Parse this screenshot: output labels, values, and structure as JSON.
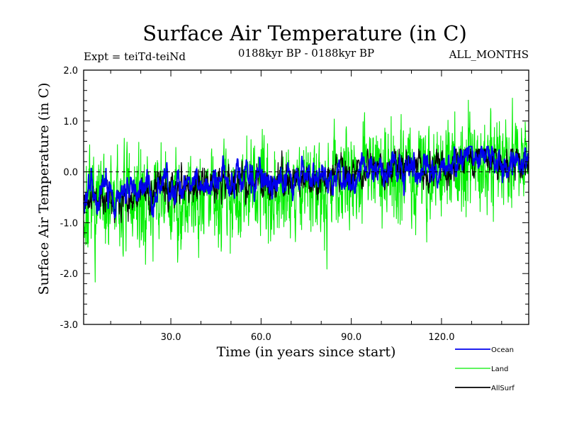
{
  "chart_data": {
    "type": "line",
    "title": "Surface Air Temperature (in C)",
    "experiment": "Expt = teiTd-teiNd",
    "period": "0188kyr BP - 0188kyr BP",
    "months": "ALL_MONTHS",
    "xlabel": "Time (in years since start)",
    "ylabel": "Surface Air Temperature (in C)",
    "xlim": [
      1,
      149
    ],
    "ylim": [
      -3.0,
      2.0
    ],
    "x_ticks": [
      30,
      60,
      90,
      120
    ],
    "x_tick_labels": [
      "30.0",
      "60.0",
      "90.0",
      "120.0"
    ],
    "y_ticks": [
      -3,
      -2,
      -1,
      0,
      1,
      2
    ],
    "y_tick_labels": [
      "-3.0",
      "-2.0",
      "-1.0",
      "0.0",
      "1.0",
      "2.0"
    ],
    "reference_line": 0.0,
    "samples_per_year": 12,
    "series": [
      {
        "name": "Land",
        "color": "#00ee00",
        "anomaly_range": [
          -2.45,
          1.45
        ],
        "trend_points": [
          [
            1,
            -0.9
          ],
          [
            5,
            -0.75
          ],
          [
            10,
            -0.6
          ],
          [
            20,
            -0.6
          ],
          [
            30,
            -0.55
          ],
          [
            40,
            -0.45
          ],
          [
            50,
            -0.35
          ],
          [
            60,
            -0.35
          ],
          [
            70,
            -0.3
          ],
          [
            80,
            -0.3
          ],
          [
            90,
            -0.05
          ],
          [
            100,
            0.05
          ],
          [
            110,
            0.05
          ],
          [
            120,
            0.05
          ],
          [
            130,
            0.3
          ],
          [
            140,
            0.2
          ],
          [
            149,
            0.25
          ]
        ]
      },
      {
        "name": "Ocean",
        "color": "#0000ee",
        "anomaly_range": [
          -0.9,
          0.5
        ],
        "trend_points": [
          [
            1,
            -0.55
          ],
          [
            5,
            -0.45
          ],
          [
            10,
            -0.4
          ],
          [
            20,
            -0.35
          ],
          [
            30,
            -0.3
          ],
          [
            40,
            -0.25
          ],
          [
            50,
            -0.15
          ],
          [
            60,
            -0.15
          ],
          [
            70,
            -0.15
          ],
          [
            80,
            -0.05
          ],
          [
            90,
            0.0
          ],
          [
            100,
            0.05
          ],
          [
            110,
            0.05
          ],
          [
            120,
            0.05
          ],
          [
            130,
            0.3
          ],
          [
            140,
            0.1
          ],
          [
            149,
            0.3
          ]
        ]
      },
      {
        "name": "AllSurf",
        "color": "#000000",
        "anomaly_range": [
          -1.0,
          0.45
        ],
        "trend_points": [
          [
            1,
            -0.6
          ],
          [
            5,
            -0.5
          ],
          [
            10,
            -0.45
          ],
          [
            20,
            -0.4
          ],
          [
            30,
            -0.35
          ],
          [
            40,
            -0.3
          ],
          [
            50,
            -0.2
          ],
          [
            60,
            -0.2
          ],
          [
            70,
            -0.2
          ],
          [
            80,
            -0.1
          ],
          [
            90,
            -0.02
          ],
          [
            100,
            0.05
          ],
          [
            110,
            0.05
          ],
          [
            120,
            0.05
          ],
          [
            130,
            0.3
          ],
          [
            140,
            0.12
          ],
          [
            149,
            0.28
          ]
        ]
      }
    ],
    "legend_position": "bottom-right",
    "legend_entries": [
      "Ocean",
      "Land",
      "AllSurf"
    ]
  }
}
